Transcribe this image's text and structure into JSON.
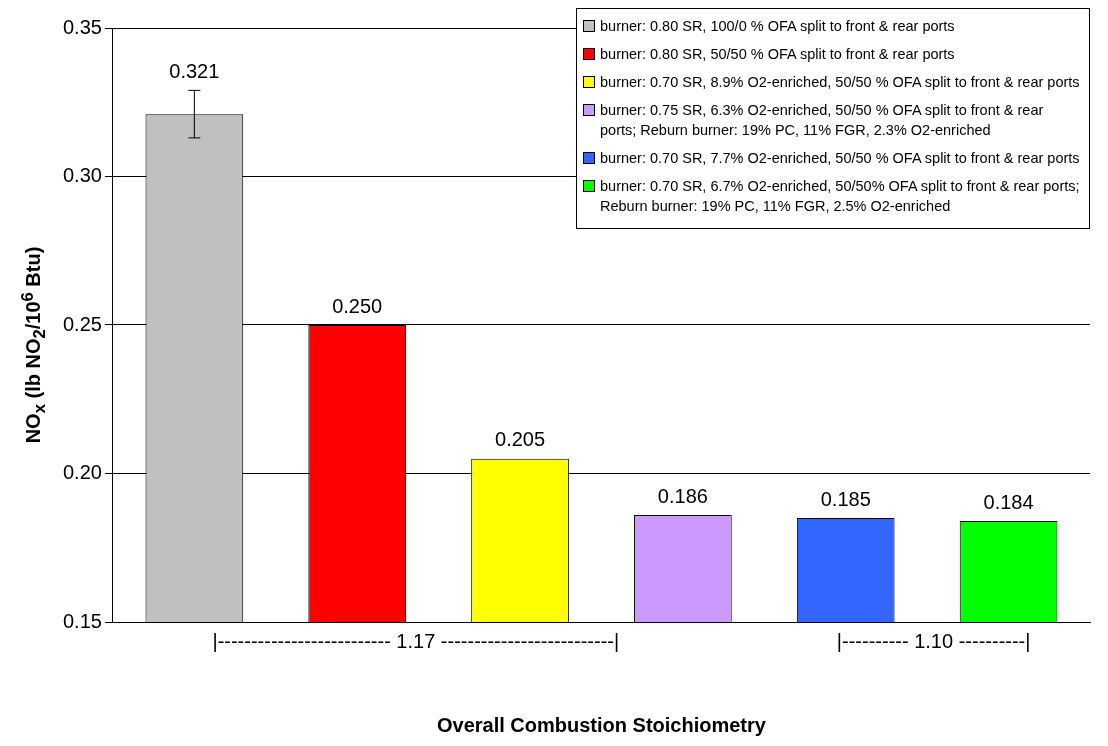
{
  "chart_data": {
    "type": "bar",
    "xlabel": "Overall Combustion Stoichiometry",
    "ylabel": "NO$_{x}$ (lb NO$_{2}$/10$^{6}$ Btu)",
    "categories": [
      null,
      null,
      null,
      null,
      null,
      null
    ],
    "series": [
      {
        "name": "burner: 0.80 SR, 100/0 % OFA split to front & rear ports",
        "color": "#c0c0c0",
        "values": [
          0.321,
          null,
          null,
          null,
          null,
          null
        ],
        "value_labels": [
          "0.321",
          null,
          null,
          null,
          null,
          null
        ],
        "errors": [
          [
            0.313,
            0.329
          ],
          null,
          null,
          null,
          null,
          null
        ]
      },
      {
        "name": "burner: 0.80 SR, 50/50 % OFA split to front & rear ports",
        "color": "#ff0000",
        "values": [
          null,
          0.25,
          null,
          null,
          null,
          null
        ],
        "value_labels": [
          null,
          "0.250",
          null,
          null,
          null,
          null
        ]
      },
      {
        "name": "burner: 0.70 SR, 8.9% O2-enriched, 50/50 % OFA split to front & rear ports",
        "color": "#ffff00",
        "values": [
          null,
          null,
          0.205,
          null,
          null,
          null
        ],
        "value_labels": [
          null,
          null,
          "0.205",
          null,
          null,
          null
        ]
      },
      {
        "name": "burner: 0.75 SR, 6.3% O2-enriched, 50/50 % OFA split to front & rear ports; Reburn burner: 19% PC, 11% FGR, 2.3% O2-enriched",
        "color": "#cc99ff",
        "values": [
          null,
          null,
          null,
          0.186,
          null,
          null
        ],
        "value_labels": [
          null,
          null,
          null,
          "0.186",
          null,
          null
        ]
      },
      {
        "name": "burner: 0.70 SR, 7.7% O2-enriched, 50/50 % OFA split to front & rear ports",
        "color": "#3366ff",
        "values": [
          null,
          null,
          null,
          null,
          0.185,
          null
        ],
        "value_labels": [
          null,
          null,
          null,
          null,
          "0.185",
          null
        ]
      },
      {
        "name": "burner: 0.70 SR, 6.7% O2-enriched, 50/50% OFA split to front & rear ports; Reburn burner: 19% PC, 11% FGR, 2.5% O2-enriched",
        "color": "#00ff00",
        "values": [
          null,
          null,
          null,
          null,
          null,
          0.184
        ],
        "value_labels": [
          null,
          null,
          null,
          null,
          null,
          "0.184"
        ]
      }
    ],
    "ylim": [
      0.15,
      0.35
    ],
    "yticks": [
      {
        "value": 0.15,
        "label": "0.15"
      },
      {
        "value": 0.2,
        "label": "0.20"
      },
      {
        "value": 0.25,
        "label": "0.25"
      },
      {
        "value": 0.3,
        "label": "0.30"
      },
      {
        "value": 0.35,
        "label": "0.35"
      }
    ],
    "grid": "y",
    "legend": "top right",
    "annotations": [
      "|-------------------------- 1.17 --------------------------|",
      "|---------- 1.10 ----------|"
    ]
  }
}
